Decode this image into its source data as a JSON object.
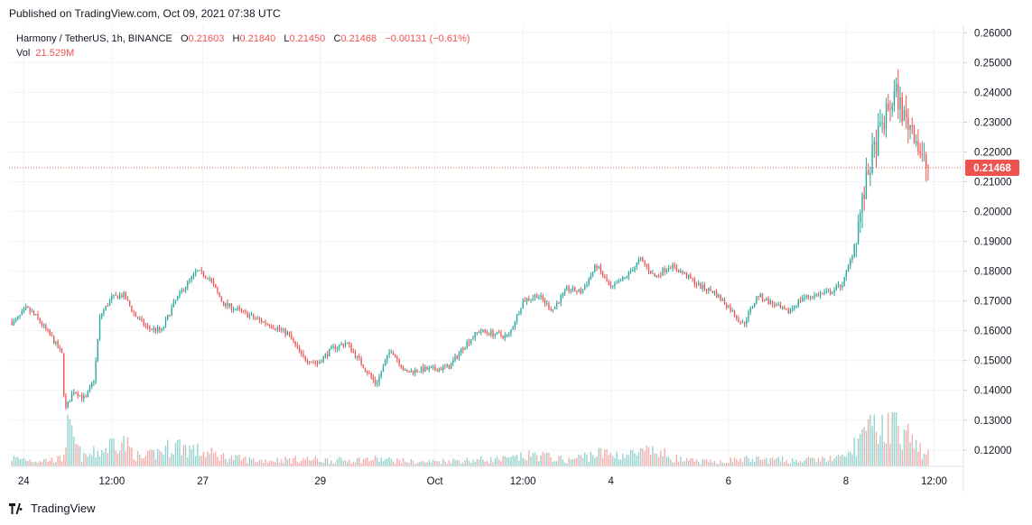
{
  "header": {
    "published": "Published on TradingView.com, Oct 09, 2021 07:38 UTC"
  },
  "legend": {
    "symbol": "Harmony / TetherUS, 1h, BINANCE",
    "o_label": "O",
    "o_value": "0.21603",
    "h_label": "H",
    "h_value": "0.21840",
    "l_label": "L",
    "l_value": "0.21450",
    "c_label": "C",
    "c_value": "0.21468",
    "change": "−0.00131 (−0.61%)",
    "vol_label": "Vol",
    "vol_value": "21.529M"
  },
  "footer": {
    "brand": "TradingView",
    "logo_icon": "tradingview-logo-icon"
  },
  "colors": {
    "up": "#26a69a",
    "down": "#ef5350",
    "grid": "#f0f3fa",
    "last_price_bg": "#ef5350"
  },
  "chart_data": {
    "type": "candlestick",
    "symbol": "Harmony / TetherUS",
    "interval": "1h",
    "exchange": "BINANCE",
    "y_ticks": [
      "0.26000",
      "0.25000",
      "0.24000",
      "0.23000",
      "0.22000",
      "0.21000",
      "0.20000",
      "0.19000",
      "0.18000",
      "0.17000",
      "0.16000",
      "0.15000",
      "0.14000",
      "0.13000",
      "0.12000"
    ],
    "ylim": [
      0.1145,
      0.2625
    ],
    "x_ticks": [
      {
        "label": "24",
        "t": 0.5
      },
      {
        "label": "12:00",
        "t": 3.5
      },
      {
        "label": "27",
        "t": 6.6
      },
      {
        "label": "29",
        "t": 10.6
      },
      {
        "label": "Oct",
        "t": 14.5
      },
      {
        "label": "12:00",
        "t": 17.5
      },
      {
        "label": "4",
        "t": 20.5
      },
      {
        "label": "6",
        "t": 24.5
      },
      {
        "label": "8",
        "t": 28.5
      },
      {
        "label": "12:00",
        "t": 31.5
      }
    ],
    "xlim": [
      0,
      32.5
    ],
    "last_price": "0.21468",
    "last_close": 0.21468,
    "volume_scale_max": 30,
    "price_path": [
      [
        0.2,
        0.163
      ],
      [
        0.6,
        0.1675
      ],
      [
        0.9,
        0.165
      ],
      [
        1.2,
        0.161
      ],
      [
        1.5,
        0.157
      ],
      [
        1.8,
        0.152
      ],
      [
        1.9,
        0.133
      ],
      [
        2.2,
        0.14
      ],
      [
        2.6,
        0.137
      ],
      [
        2.9,
        0.144
      ],
      [
        3.1,
        0.165
      ],
      [
        3.5,
        0.171
      ],
      [
        3.9,
        0.172
      ],
      [
        4.3,
        0.165
      ],
      [
        4.7,
        0.161
      ],
      [
        5.2,
        0.16
      ],
      [
        5.6,
        0.169
      ],
      [
        6.0,
        0.175
      ],
      [
        6.4,
        0.18
      ],
      [
        6.8,
        0.178
      ],
      [
        7.3,
        0.169
      ],
      [
        7.9,
        0.1665
      ],
      [
        8.4,
        0.164
      ],
      [
        8.9,
        0.162
      ],
      [
        9.5,
        0.159
      ],
      [
        10.0,
        0.151
      ],
      [
        10.5,
        0.149
      ],
      [
        11.0,
        0.154
      ],
      [
        11.5,
        0.156
      ],
      [
        12.0,
        0.149
      ],
      [
        12.5,
        0.142
      ],
      [
        13.0,
        0.154
      ],
      [
        13.5,
        0.146
      ],
      [
        14.0,
        0.147
      ],
      [
        14.5,
        0.147
      ],
      [
        15.0,
        0.148
      ],
      [
        15.5,
        0.155
      ],
      [
        16.0,
        0.16
      ],
      [
        16.5,
        0.159
      ],
      [
        17.0,
        0.158
      ],
      [
        17.5,
        0.17
      ],
      [
        18.0,
        0.172
      ],
      [
        18.5,
        0.167
      ],
      [
        19.0,
        0.174
      ],
      [
        19.5,
        0.173
      ],
      [
        20.0,
        0.182
      ],
      [
        20.5,
        0.174
      ],
      [
        21.0,
        0.178
      ],
      [
        21.5,
        0.184
      ],
      [
        22.0,
        0.178
      ],
      [
        22.5,
        0.182
      ],
      [
        23.0,
        0.179
      ],
      [
        23.5,
        0.175
      ],
      [
        24.0,
        0.173
      ],
      [
        24.5,
        0.168
      ],
      [
        25.0,
        0.162
      ],
      [
        25.5,
        0.172
      ],
      [
        26.0,
        0.169
      ],
      [
        26.5,
        0.166
      ],
      [
        27.0,
        0.171
      ],
      [
        27.5,
        0.172
      ],
      [
        28.0,
        0.173
      ],
      [
        28.4,
        0.176
      ],
      [
        28.7,
        0.185
      ],
      [
        29.0,
        0.2
      ],
      [
        29.3,
        0.215
      ],
      [
        29.6,
        0.225
      ],
      [
        29.9,
        0.233
      ],
      [
        30.2,
        0.24
      ],
      [
        30.5,
        0.231
      ],
      [
        30.8,
        0.228
      ],
      [
        31.1,
        0.217
      ],
      [
        31.3,
        0.2147
      ]
    ],
    "volume_profile": [
      [
        0,
        6
      ],
      [
        1,
        4
      ],
      [
        1.8,
        5
      ],
      [
        2.0,
        25
      ],
      [
        2.5,
        6
      ],
      [
        3.3,
        12
      ],
      [
        3.7,
        20
      ],
      [
        4.5,
        5
      ],
      [
        5.7,
        15
      ],
      [
        6.5,
        10
      ],
      [
        7.5,
        6
      ],
      [
        8.5,
        4
      ],
      [
        10,
        5
      ],
      [
        11,
        4
      ],
      [
        12.5,
        5
      ],
      [
        14,
        3
      ],
      [
        15,
        4
      ],
      [
        17,
        5
      ],
      [
        18,
        8
      ],
      [
        19,
        4
      ],
      [
        20,
        9
      ],
      [
        21,
        8
      ],
      [
        22,
        10
      ],
      [
        23,
        4
      ],
      [
        24,
        3
      ],
      [
        25,
        5
      ],
      [
        27,
        4
      ],
      [
        28.5,
        6
      ],
      [
        29.0,
        20
      ],
      [
        29.6,
        26
      ],
      [
        30.0,
        30
      ],
      [
        30.2,
        38
      ],
      [
        30.5,
        22
      ],
      [
        31.0,
        12
      ],
      [
        31.3,
        8
      ]
    ]
  }
}
